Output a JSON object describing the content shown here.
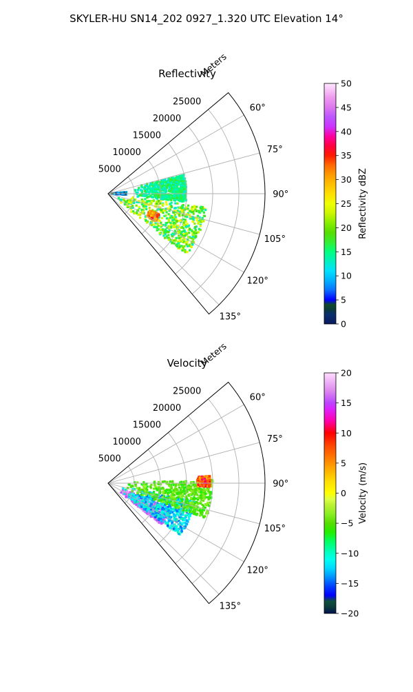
{
  "figure": {
    "title": "SKYLER-HU  SN14_202  0927_1.320 UTC Elevation 14°"
  },
  "chart_data": [
    {
      "type": "heatmap",
      "projection": "polar-sector",
      "title": "Reflectivity",
      "range_label": "Meters",
      "range_ticks": [
        5000,
        10000,
        15000,
        20000,
        25000
      ],
      "range_tick_labels": [
        "5000",
        "10000",
        "15000",
        "20000",
        "25000"
      ],
      "range_max": 30000,
      "azimuth_range_deg": [
        50,
        140
      ],
      "azimuth_ticks": [
        60,
        75,
        90,
        105,
        120,
        135
      ],
      "azimuth_tick_labels": [
        "60°",
        "75°",
        "90°",
        "105°",
        "120°",
        "135°"
      ],
      "grid": true,
      "colorbar": {
        "label": "Reflectivity dBZ",
        "range": [
          0,
          50
        ],
        "ticks": [
          0,
          5,
          10,
          15,
          20,
          25,
          30,
          35,
          40,
          45,
          50
        ],
        "tick_labels": [
          "0",
          "5",
          "10",
          "15",
          "20",
          "25",
          "30",
          "35",
          "40",
          "45",
          "50"
        ]
      },
      "echo_regions": [
        {
          "az_range": [
            98,
            128
          ],
          "range_m": [
            1500,
            19000
          ],
          "value_range": [
            12,
            26
          ],
          "dominant": "yellow-green"
        },
        {
          "az_range": [
            112,
            120
          ],
          "range_m": [
            8500,
            10500
          ],
          "value_range": [
            28,
            36
          ],
          "dominant": "orange-red"
        },
        {
          "az_range": [
            85,
            93
          ],
          "range_m": [
            500,
            3500
          ],
          "value_range": [
            2,
            12
          ],
          "dominant": "blue"
        },
        {
          "az_range": [
            76,
            96
          ],
          "range_m": [
            5000,
            15000
          ],
          "value_range": [
            12,
            18
          ],
          "dominant": "green"
        }
      ]
    },
    {
      "type": "heatmap",
      "projection": "polar-sector",
      "title": "Velocity",
      "range_label": "Meters",
      "range_ticks": [
        5000,
        10000,
        15000,
        20000,
        25000
      ],
      "range_tick_labels": [
        "5000",
        "10000",
        "15000",
        "20000",
        "25000"
      ],
      "range_max": 30000,
      "azimuth_range_deg": [
        50,
        140
      ],
      "azimuth_ticks": [
        60,
        75,
        90,
        105,
        120,
        135
      ],
      "azimuth_tick_labels": [
        "60°",
        "75°",
        "90°",
        "105°",
        "120°",
        "135°"
      ],
      "grid": true,
      "colorbar": {
        "label": "Velocity (m/s)",
        "range": [
          -20,
          20
        ],
        "ticks": [
          -20,
          -15,
          -10,
          -5,
          0,
          5,
          10,
          15,
          20
        ],
        "tick_labels": [
          "−20",
          "−15",
          "−10",
          "−5",
          "0",
          "5",
          "10",
          "15",
          "20"
        ]
      },
      "echo_regions": [
        {
          "az_range": [
            112,
            128
          ],
          "range_m": [
            2500,
            13000
          ],
          "value_range": [
            15,
            18
          ],
          "dominant": "purple"
        },
        {
          "az_range": [
            102,
            126
          ],
          "range_m": [
            3000,
            17000
          ],
          "value_range": [
            -15,
            -9
          ],
          "dominant": "cyan-blue"
        },
        {
          "az_range": [
            88,
            110
          ],
          "range_m": [
            3000,
            20000
          ],
          "value_range": [
            -7,
            -3
          ],
          "dominant": "green"
        },
        {
          "az_range": [
            86,
            92
          ],
          "range_m": [
            17000,
            19500
          ],
          "value_range": [
            3,
            12
          ],
          "dominant": "orange-red"
        }
      ]
    }
  ]
}
